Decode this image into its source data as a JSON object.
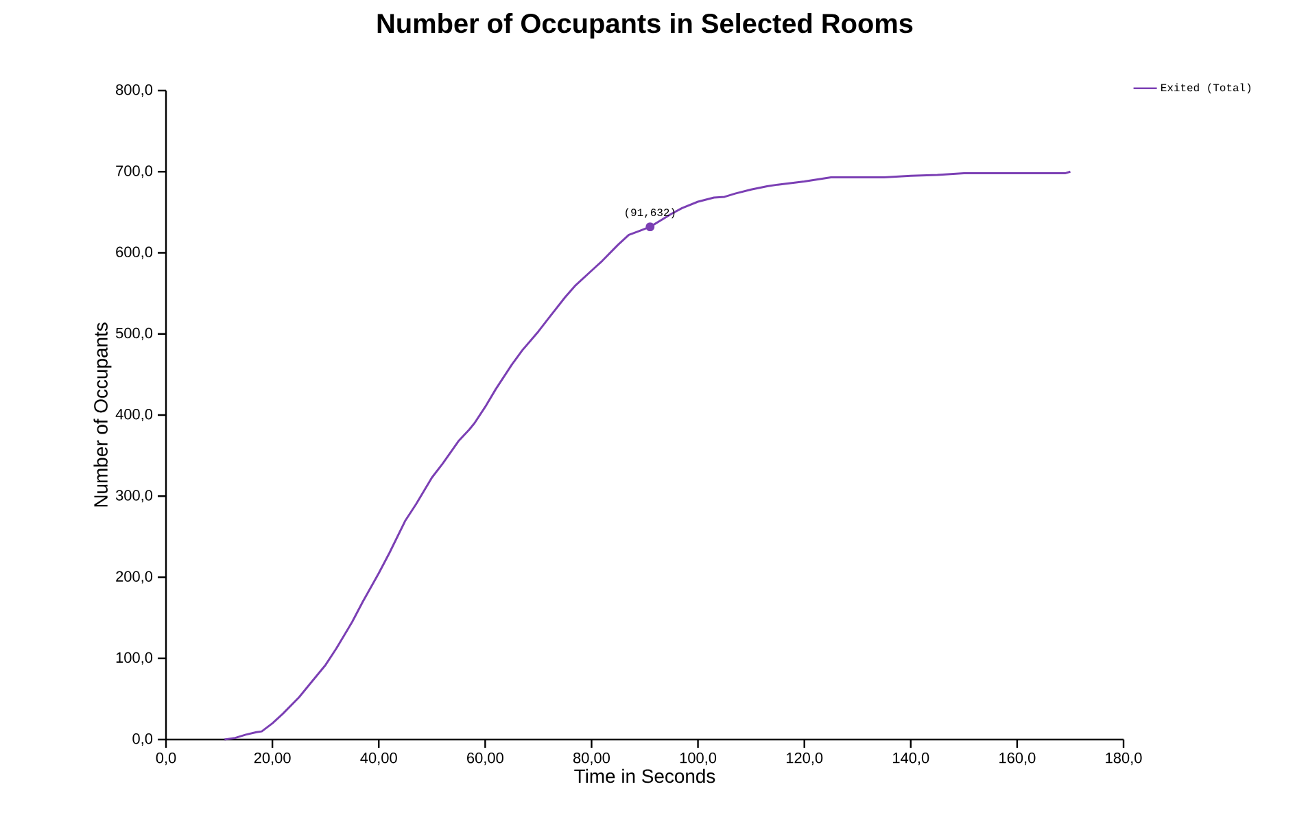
{
  "chart_data": {
    "type": "line",
    "title": "Number of Occupants in Selected Rooms",
    "xlabel": "Time in Seconds",
    "ylabel": "Number of Occupants",
    "x": [
      11,
      13,
      15,
      17,
      18,
      20,
      22,
      25,
      27,
      30,
      32,
      35,
      37,
      40,
      42,
      45,
      47,
      50,
      52,
      55,
      57,
      58,
      60,
      62,
      65,
      67,
      70,
      72,
      75,
      77,
      80,
      82,
      85,
      87,
      89,
      91,
      93,
      95,
      97,
      100,
      103,
      105,
      107,
      110,
      113,
      115,
      120,
      125,
      130,
      135,
      140,
      145,
      150,
      160,
      169,
      170
    ],
    "series": [
      {
        "name": "Exited (Total)",
        "color": "#7b3fb4",
        "values": [
          0,
          2,
          6,
          9,
          10,
          20,
          32,
          52,
          68,
          92,
          112,
          145,
          170,
          205,
          230,
          270,
          290,
          323,
          340,
          368,
          382,
          390,
          410,
          432,
          462,
          480,
          503,
          520,
          545,
          560,
          578,
          590,
          610,
          622,
          627,
          632,
          640,
          648,
          655,
          663,
          668,
          669,
          673,
          678,
          682,
          684,
          688,
          693,
          693,
          693,
          695,
          696,
          698,
          698,
          698,
          700
        ]
      }
    ],
    "xlim": [
      0,
      180
    ],
    "ylim": [
      0,
      800
    ],
    "xticks": [
      {
        "value": 0,
        "label": "0,0"
      },
      {
        "value": 20,
        "label": "20,00"
      },
      {
        "value": 40,
        "label": "40,00"
      },
      {
        "value": 60,
        "label": "60,00"
      },
      {
        "value": 80,
        "label": "80,00"
      },
      {
        "value": 100,
        "label": "100,0"
      },
      {
        "value": 120,
        "label": "120,0"
      },
      {
        "value": 140,
        "label": "140,0"
      },
      {
        "value": 160,
        "label": "160,0"
      },
      {
        "value": 180,
        "label": "180,0"
      }
    ],
    "yticks": [
      {
        "value": 0,
        "label": "0,0"
      },
      {
        "value": 100,
        "label": "100,0"
      },
      {
        "value": 200,
        "label": "200,0"
      },
      {
        "value": 300,
        "label": "300,0"
      },
      {
        "value": 400,
        "label": "400,0"
      },
      {
        "value": 500,
        "label": "500,0"
      },
      {
        "value": 600,
        "label": "600,0"
      },
      {
        "value": 700,
        "label": "700,0"
      },
      {
        "value": 800,
        "label": "800,0"
      }
    ],
    "annotations": [
      {
        "text": "(91,632)",
        "x": 91,
        "y": 632
      }
    ],
    "legend": "top right",
    "grid": false,
    "marker": "none",
    "line_style": "solid"
  }
}
